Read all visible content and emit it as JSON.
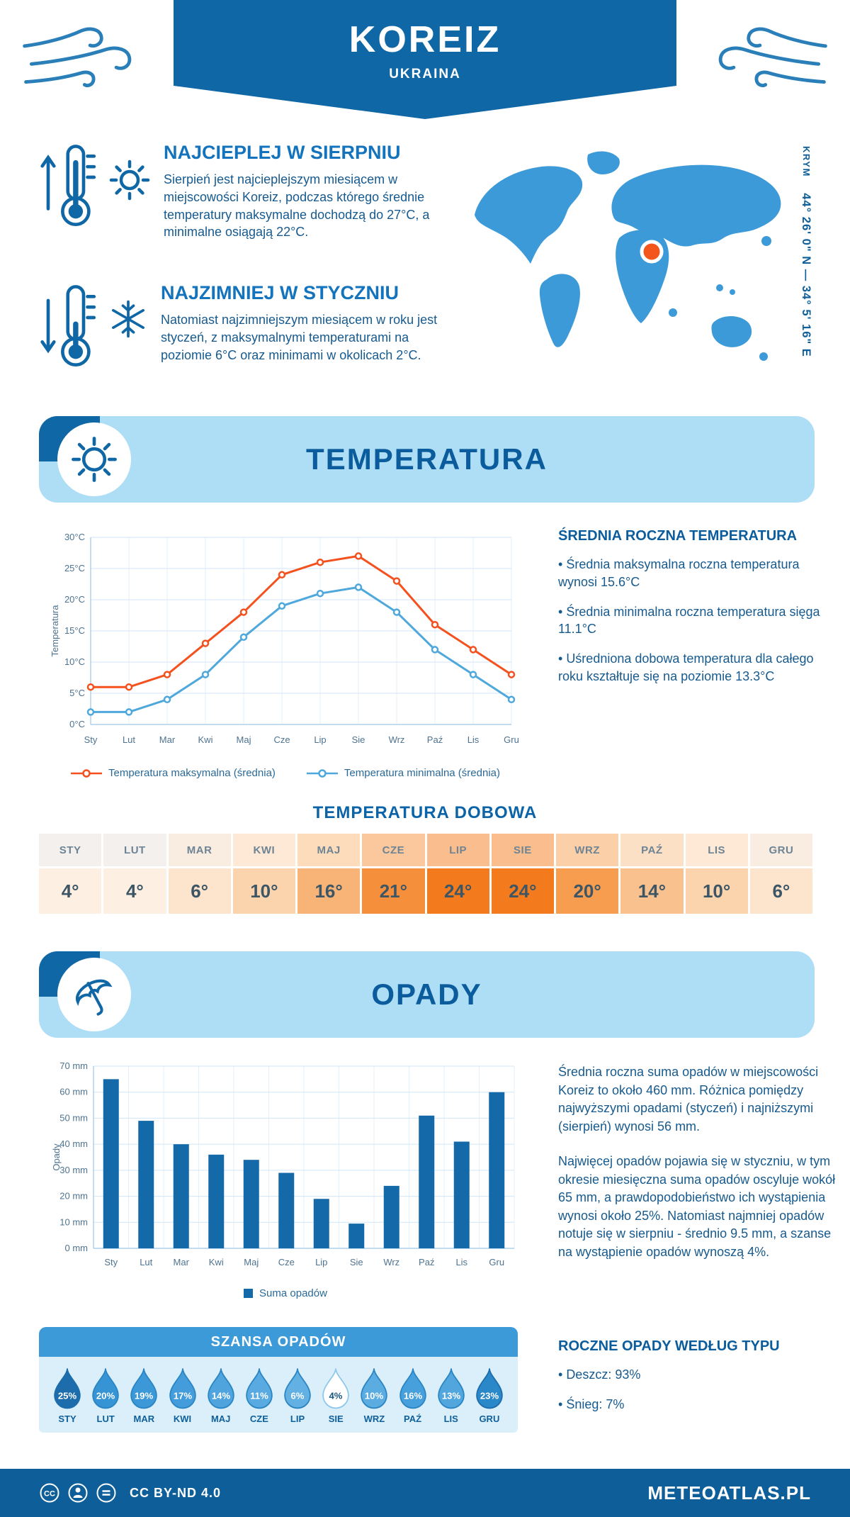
{
  "colors": {
    "banner": "#0f67a6",
    "band": "#aeddf6",
    "heading": "#0b5c9c",
    "body_text": "#175a8e",
    "marker_orange": "#f4551c",
    "map_blue": "#3d9ad8"
  },
  "header": {
    "title": "KOREIZ",
    "subtitle": "UKRAINA"
  },
  "warmest": {
    "title": "NAJCIEPLEJ W SIERPNIU",
    "text": "Sierpień jest najcieplejszym miesiącem w miejscowości Koreiz, podczas którego średnie temperatury maksymalne dochodzą do 27°C, a minimalne osiągają 22°C."
  },
  "coldest": {
    "title": "NAJZIMNIEJ W STYCZNIU",
    "text": "Natomiast najzimniejszym miesiącem w roku jest styczeń, z maksymalnymi temperaturami na poziomie 6°C oraz minimami w okolicach 2°C."
  },
  "map": {
    "region": "KRYM",
    "coords": "44° 26' 0\" N — 34° 5' 16\" E"
  },
  "temperature": {
    "band_title": "TEMPERATURA",
    "summary_title": "ŚREDNIA ROCZNA TEMPERATURA",
    "bullets": [
      "Średnia maksymalna roczna temperatura wynosi 15.6°C",
      "Średnia minimalna roczna temperatura sięga 11.1°C",
      "Uśredniona dobowa temperatura dla całego roku kształtuje się na poziomie 13.3°C"
    ],
    "daily_title": "TEMPERATURA DOBOWA"
  },
  "daily_table": {
    "months": [
      "STY",
      "LUT",
      "MAR",
      "KWI",
      "MAJ",
      "CZE",
      "LIP",
      "SIE",
      "WRZ",
      "PAŹ",
      "LIS",
      "GRU"
    ],
    "values": [
      "4°",
      "4°",
      "6°",
      "10°",
      "16°",
      "21°",
      "24°",
      "24°",
      "20°",
      "14°",
      "10°",
      "6°"
    ],
    "value_colors": [
      "#fdf0e3",
      "#fdf0e3",
      "#fce4cd",
      "#fbd4ad",
      "#f8b476",
      "#f68f3c",
      "#f47b1d",
      "#f47b1d",
      "#f79d4f",
      "#f9c18d",
      "#fbd4ad",
      "#fce4cd"
    ],
    "header_colors": [
      "#f3f0ee",
      "#f3f0ee",
      "#f9ece0",
      "#fde9d6",
      "#fcdcbb",
      "#fbc89e",
      "#fabd8e",
      "#fabd8e",
      "#fbcfa7",
      "#fce0c6",
      "#fde9d6",
      "#f9ece0"
    ]
  },
  "precip": {
    "band_title": "OPADY",
    "paragraphs": [
      "Średnia roczna suma opadów w miejscowości Koreiz to około 460 mm. Różnica pomiędzy najwyższymi opadami (styczeń) i najniższymi (sierpień) wynosi 56 mm.",
      "Najwięcej opadów pojawia się w styczniu, w tym okresie miesięczna suma opadów oscyluje wokół 65 mm, a prawdopodobieństwo ich wystąpienia wynosi około 25%. Natomiast najmniej opadów notuje się w sierpniu - średnio 9.5 mm, a szanse na wystąpienie opadów wynoszą 4%."
    ]
  },
  "rain_chance": {
    "title": "SZANSA OPADÓW",
    "items": [
      {
        "month": "STY",
        "percent": "25%",
        "fill": "#1d6dac",
        "stroke": "#1d6dac",
        "text_color": "#ffffff"
      },
      {
        "month": "LUT",
        "percent": "20%",
        "fill": "#3794d4",
        "stroke": "#2a85c4",
        "text_color": "#ffffff"
      },
      {
        "month": "MAR",
        "percent": "19%",
        "fill": "#3c98d7",
        "stroke": "#2a85c4",
        "text_color": "#ffffff"
      },
      {
        "month": "KWI",
        "percent": "17%",
        "fill": "#449dda",
        "stroke": "#2a85c4",
        "text_color": "#ffffff"
      },
      {
        "month": "MAJ",
        "percent": "14%",
        "fill": "#4fa4dd",
        "stroke": "#2a85c4",
        "text_color": "#ffffff"
      },
      {
        "month": "CZE",
        "percent": "11%",
        "fill": "#58aae0",
        "stroke": "#2a85c4",
        "text_color": "#ffffff"
      },
      {
        "month": "LIP",
        "percent": "6%",
        "fill": "#63b1e3",
        "stroke": "#2a85c4",
        "text_color": "#ffffff"
      },
      {
        "month": "SIE",
        "percent": "4%",
        "fill": "#ffffff",
        "stroke": "#8ec7ec",
        "text_color": "#16557f"
      },
      {
        "month": "WRZ",
        "percent": "10%",
        "fill": "#5aace1",
        "stroke": "#2a85c4",
        "text_color": "#ffffff"
      },
      {
        "month": "PAŹ",
        "percent": "16%",
        "fill": "#479fdb",
        "stroke": "#2a85c4",
        "text_color": "#ffffff"
      },
      {
        "month": "LIS",
        "percent": "13%",
        "fill": "#52a6de",
        "stroke": "#2a85c4",
        "text_color": "#ffffff"
      },
      {
        "month": "GRU",
        "percent": "23%",
        "fill": "#2a87c8",
        "stroke": "#1d6dac",
        "text_color": "#ffffff"
      }
    ]
  },
  "precip_type": {
    "title": "ROCZNE OPADY WEDŁUG TYPU",
    "bullets": [
      "Deszcz: 93%",
      "Śnieg: 7%"
    ]
  },
  "footer": {
    "license": "CC BY-ND 4.0",
    "brand": "METEOATLAS.PL"
  },
  "chart_data": [
    {
      "type": "line",
      "title": "Średnie temperatury miesięczne",
      "categories": [
        "Sty",
        "Lut",
        "Mar",
        "Kwi",
        "Maj",
        "Cze",
        "Lip",
        "Sie",
        "Wrz",
        "Paź",
        "Lis",
        "Gru"
      ],
      "series": [
        {
          "name": "Temperatura maksymalna (średnia)",
          "color": "#f4511e",
          "values": [
            6,
            6,
            8,
            13,
            18,
            24,
            26,
            27,
            23,
            16,
            12,
            8
          ]
        },
        {
          "name": "Temperatura minimalna (średnia)",
          "color": "#4fa8dc",
          "values": [
            2,
            2,
            4,
            8,
            14,
            19,
            21,
            22,
            18,
            12,
            8,
            4
          ]
        }
      ],
      "xlabel": "",
      "ylabel": "Temperatura",
      "ylim": [
        0,
        30
      ],
      "ytick_step": 5,
      "ytick_suffix": "°C",
      "grid": true,
      "legend_position": "bottom"
    },
    {
      "type": "bar",
      "title": "Suma opadów miesięcznych",
      "categories": [
        "Sty",
        "Lut",
        "Mar",
        "Kwi",
        "Maj",
        "Cze",
        "Lip",
        "Sie",
        "Wrz",
        "Paź",
        "Lis",
        "Gru"
      ],
      "series": [
        {
          "name": "Suma opadów",
          "color": "#1469a8",
          "values": [
            65,
            49,
            40,
            36,
            34,
            29,
            19,
            9.5,
            24,
            51,
            41,
            60
          ]
        }
      ],
      "xlabel": "",
      "ylabel": "Opady",
      "ylim": [
        0,
        70
      ],
      "ytick_step": 10,
      "ytick_suffix": " mm",
      "grid": true,
      "legend_position": "bottom"
    }
  ]
}
